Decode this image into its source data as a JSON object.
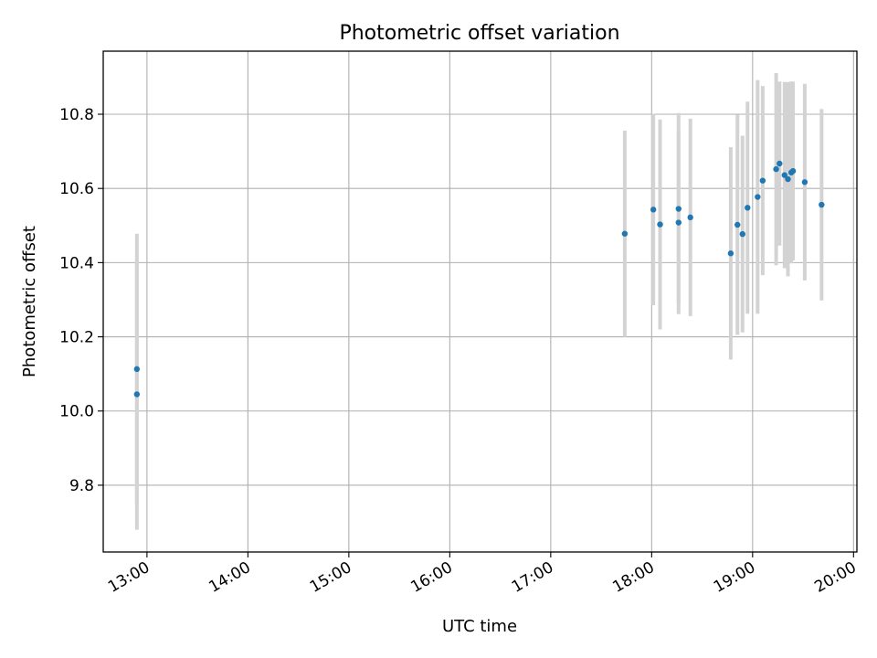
{
  "chart_data": {
    "type": "scatter",
    "title": "Photometric offset variation",
    "xlabel": "UTC time",
    "ylabel": "Photometric offset",
    "x_unit": "UTC time (HH:MM)",
    "xlim": [
      "12:34",
      "20:02"
    ],
    "ylim": [
      9.62,
      10.97
    ],
    "grid": true,
    "x_ticks": [
      "13:00",
      "14:00",
      "15:00",
      "16:00",
      "17:00",
      "18:00",
      "19:00",
      "20:00"
    ],
    "y_ticks": [
      "9.8",
      "10.0",
      "10.2",
      "10.4",
      "10.6",
      "10.8"
    ],
    "marker_color": "#1f77b4",
    "errorbar_color": "#d3d3d3",
    "points": [
      {
        "x": "12:54",
        "y": 10.113,
        "err": 0.365
      },
      {
        "x": "12:54",
        "y": 10.045,
        "err": 0.365
      },
      {
        "x": "17:44",
        "y": 10.478,
        "err": 0.278
      },
      {
        "x": "18:01",
        "y": 10.543,
        "err": 0.258
      },
      {
        "x": "18:05",
        "y": 10.503,
        "err": 0.283
      },
      {
        "x": "18:16",
        "y": 10.508,
        "err": 0.247
      },
      {
        "x": "18:16",
        "y": 10.545,
        "err": 0.258
      },
      {
        "x": "18:23",
        "y": 10.522,
        "err": 0.266
      },
      {
        "x": "18:47",
        "y": 10.425,
        "err": 0.286
      },
      {
        "x": "18:51",
        "y": 10.502,
        "err": 0.297
      },
      {
        "x": "18:54",
        "y": 10.477,
        "err": 0.265
      },
      {
        "x": "18:57",
        "y": 10.548,
        "err": 0.286
      },
      {
        "x": "19:03",
        "y": 10.577,
        "err": 0.315
      },
      {
        "x": "19:06",
        "y": 10.621,
        "err": 0.255
      },
      {
        "x": "19:14",
        "y": 10.652,
        "err": 0.259
      },
      {
        "x": "19:16",
        "y": 10.667,
        "err": 0.221
      },
      {
        "x": "19:19",
        "y": 10.636,
        "err": 0.251
      },
      {
        "x": "19:21",
        "y": 10.625,
        "err": 0.262
      },
      {
        "x": "19:23",
        "y": 10.643,
        "err": 0.245
      },
      {
        "x": "19:24",
        "y": 10.647,
        "err": 0.241
      },
      {
        "x": "19:31",
        "y": 10.617,
        "err": 0.265
      },
      {
        "x": "19:41",
        "y": 10.556,
        "err": 0.258
      }
    ]
  }
}
